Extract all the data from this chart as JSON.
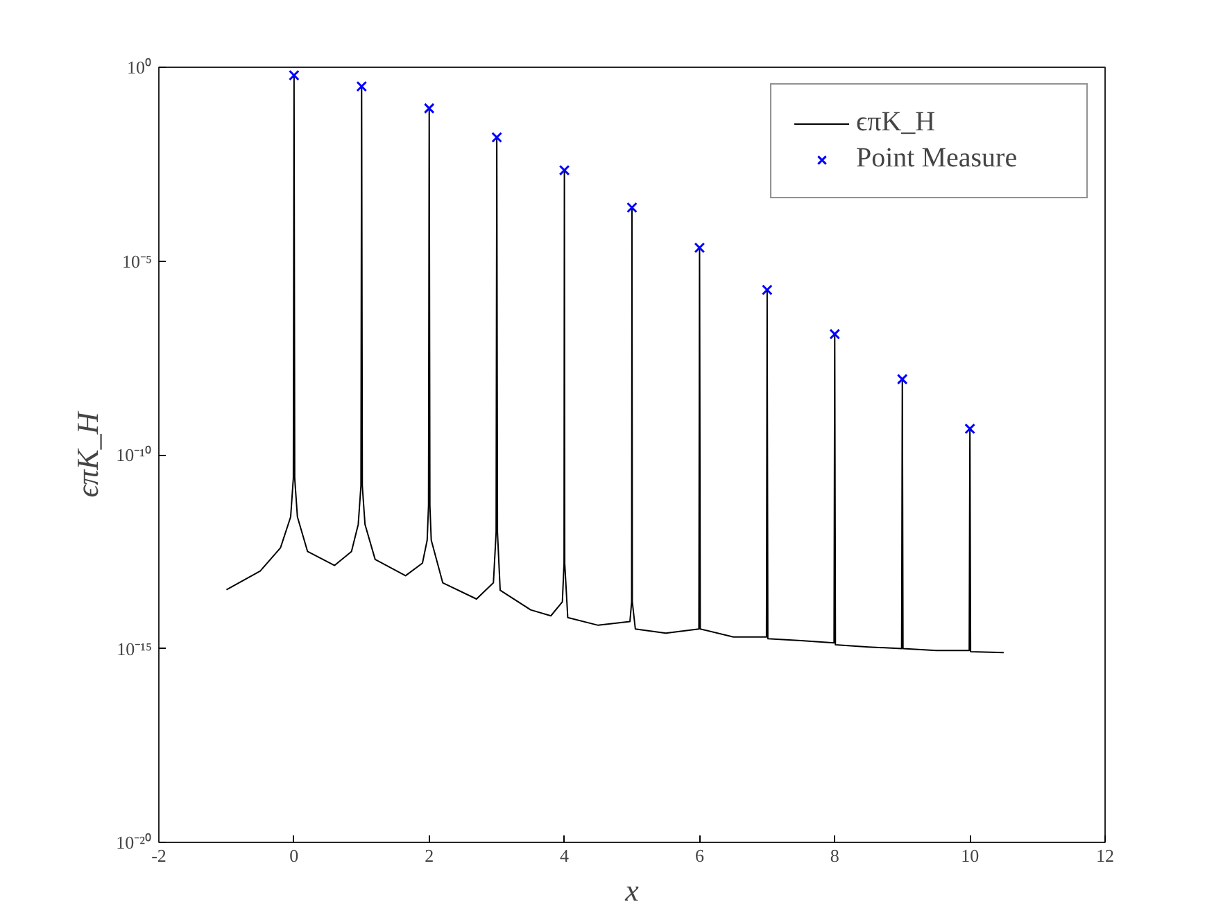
{
  "chart_data": {
    "type": "line",
    "xlabel": "x",
    "ylabel": "ϵπK_H",
    "log": "y",
    "grid": false,
    "legend": "top right",
    "xlim": [
      -2,
      12
    ],
    "xticks": [
      -2,
      0,
      2,
      4,
      6,
      8,
      10,
      12
    ],
    "ylim": [
      1e-20,
      1
    ],
    "yticks": [
      {
        "value": 1e-20,
        "label": "10⁻²⁰"
      },
      {
        "value": 1e-15,
        "label": "10⁻¹⁵"
      },
      {
        "value": 1e-10,
        "label": "10⁻¹⁰"
      },
      {
        "value": 1e-05,
        "label": "10⁻⁵"
      },
      {
        "value": 1,
        "label": "10⁰"
      }
    ],
    "series": [
      {
        "name": "ϵπK_H",
        "color": "#000000",
        "marker": "none",
        "line_style": "solid",
        "x": [
          -1,
          -0.5,
          -0.2,
          -0.05,
          -0.01,
          0,
          0.01,
          0.05,
          0.2,
          0.6,
          0.85,
          0.95,
          0.99,
          1,
          1.01,
          1.05,
          1.2,
          1.65,
          1.9,
          1.97,
          1.99,
          2,
          2.01,
          2.03,
          2.2,
          2.7,
          2.95,
          2.99,
          3,
          3.01,
          3.05,
          3.5,
          3.8,
          3.97,
          3.995,
          4,
          4.005,
          4.05,
          4.5,
          4.97,
          4.995,
          5,
          5.005,
          5.05,
          5.5,
          5.99,
          6,
          6.01,
          6.5,
          6.99,
          7,
          7.01,
          7.5,
          7.99,
          8,
          8.01,
          8.5,
          8.99,
          9,
          9.01,
          9.5,
          9.99,
          10,
          10.01,
          10.5
        ],
        "values": [
          3.3e-14,
          1e-13,
          4e-13,
          2.5e-12,
          2.5e-11,
          0.62,
          2.5e-11,
          2.5e-12,
          3.2e-13,
          1.4e-13,
          3.2e-13,
          1.6e-12,
          1.6e-11,
          0.32,
          1.6e-11,
          1.6e-12,
          2e-13,
          7.6e-14,
          1.6e-13,
          6.3e-13,
          5e-12,
          0.087,
          5e-12,
          6.3e-13,
          5e-14,
          1.9e-14,
          5e-14,
          1e-12,
          0.0155,
          1e-12,
          3.2e-14,
          1e-14,
          7e-15,
          1.6e-14,
          1.6e-13,
          0.0022,
          1.6e-13,
          6.3e-15,
          4e-15,
          5e-15,
          1.6e-14,
          0.00024,
          1.6e-14,
          3.2e-15,
          2.5e-15,
          3.2e-15,
          2.2e-05,
          3.2e-15,
          2e-15,
          2e-15,
          1.8e-06,
          1.8e-15,
          1.6e-15,
          1.4e-15,
          1.3e-07,
          1.26e-15,
          1.1e-15,
          1e-15,
          8.9e-09,
          1e-15,
          8.9e-16,
          8.9e-16,
          4.7e-10,
          8.3e-16,
          7.9e-16
        ]
      },
      {
        "name": "Point Measure",
        "type": "scatter",
        "color": "#0000ff",
        "marker": "cross",
        "x": [
          0,
          1,
          2,
          3,
          4,
          5,
          6,
          7,
          8,
          9,
          10
        ],
        "values": [
          0.62,
          0.32,
          0.087,
          0.0155,
          0.0022,
          0.00024,
          2.2e-05,
          1.8e-06,
          1.3e-07,
          8.9e-09,
          4.7e-10
        ]
      }
    ]
  }
}
